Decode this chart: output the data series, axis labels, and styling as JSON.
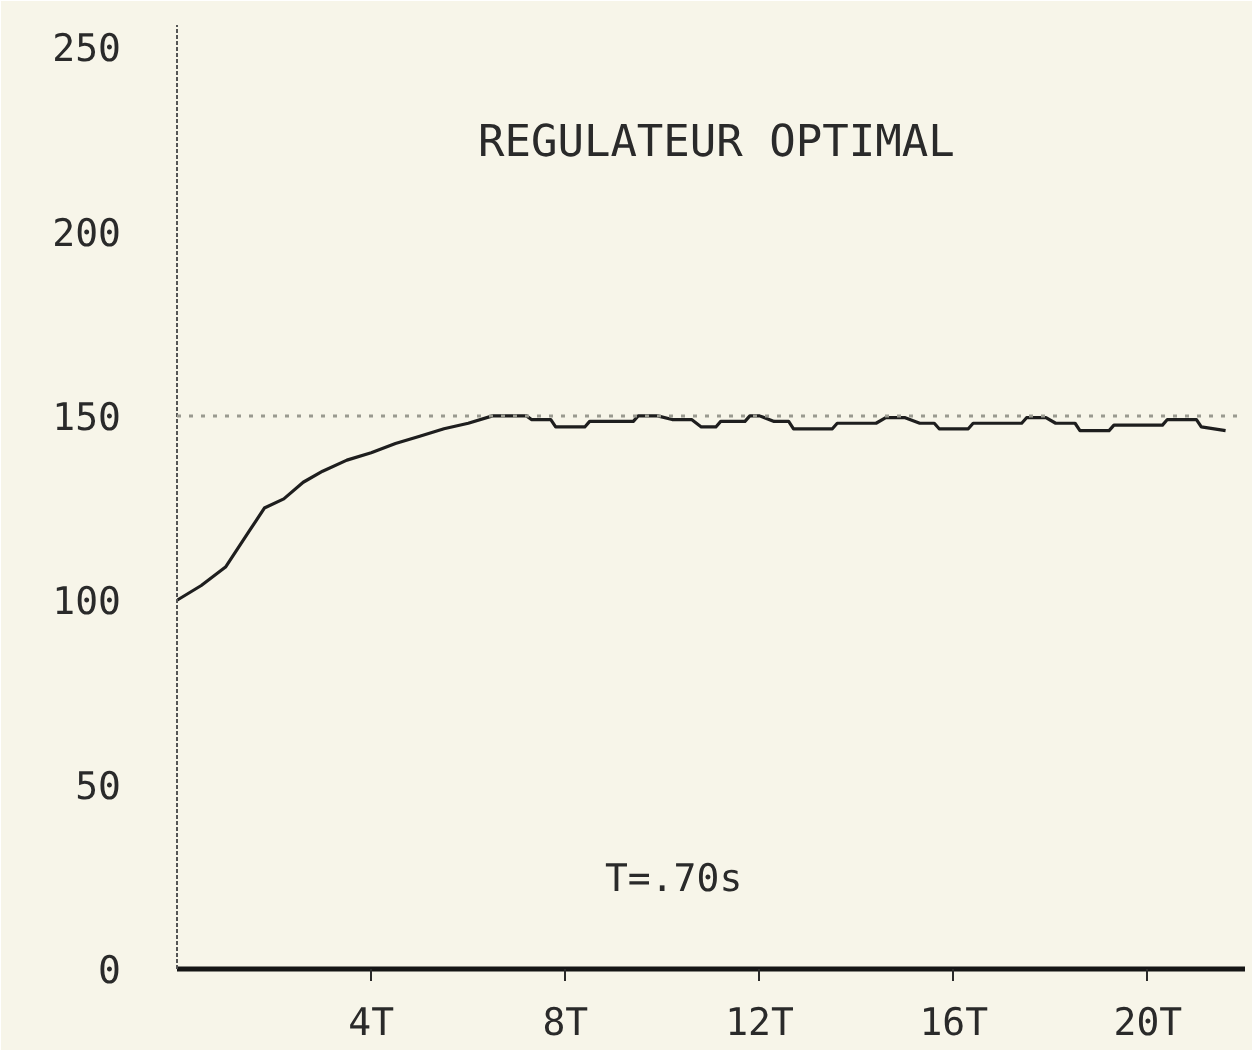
{
  "chart_data": {
    "type": "line",
    "title": "REGULATEUR OPTIMAL",
    "annotations": [
      "T=.70s"
    ],
    "x": [
      0,
      0.5,
      1,
      1.5,
      1.8,
      2.2,
      2.6,
      3,
      3.5,
      4,
      4.5,
      5,
      5.5,
      6,
      6.5,
      7.2,
      7.3,
      7.7,
      7.8,
      8.4,
      8.5,
      9.4,
      9.5,
      9.9,
      10.2,
      10.6,
      10.8,
      11.1,
      11.2,
      11.7,
      11.8,
      12.0,
      12.3,
      12.6,
      12.7,
      13.5,
      13.6,
      14.4,
      14.6,
      15.0,
      15.3,
      15.6,
      15.7,
      16.3,
      16.4,
      17.4,
      17.5,
      17.9,
      18.1,
      18.5,
      18.6,
      19.2,
      19.3,
      20.3,
      20.4,
      21.0,
      21.1,
      21.6
    ],
    "series": [
      {
        "color": "#1e1e1e",
        "values": [
          100,
          104,
          109,
          119,
          125,
          127.5,
          132,
          135,
          138,
          140,
          142.5,
          144.5,
          146.5,
          148,
          150,
          150,
          149,
          149,
          147,
          147,
          148.5,
          148.5,
          150,
          150,
          149,
          149,
          147,
          147,
          148.5,
          148.5,
          150,
          150,
          148.5,
          148.5,
          146.5,
          146.5,
          148,
          148,
          149.5,
          149.5,
          148,
          148,
          146.5,
          146.5,
          148,
          148,
          149.5,
          149.5,
          148,
          148,
          146,
          146,
          147.5,
          147.5,
          149,
          149,
          147,
          146
        ]
      }
    ],
    "xlim": [
      0,
      22
    ],
    "ylim": [
      0,
      256
    ],
    "xticks": [
      {
        "value": 4,
        "label": "4T"
      },
      {
        "value": 8,
        "label": "8T"
      },
      {
        "value": 12,
        "label": "12T"
      },
      {
        "value": 16,
        "label": "16T"
      },
      {
        "value": 20,
        "label": "20T"
      }
    ],
    "yticks": [
      0,
      50,
      100,
      150,
      200,
      250
    ],
    "ref_lines": [
      {
        "axis": "y",
        "value": 150,
        "color": "#9a9a90",
        "line_style": "dotted"
      }
    ],
    "grid": false,
    "marker": "none",
    "line_style": "solid"
  }
}
